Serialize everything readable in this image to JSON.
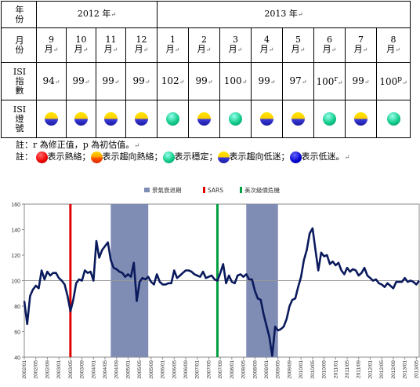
{
  "table": {
    "row_headers": {
      "year": "年\n份",
      "month": "月\n份",
      "isi_index": "ISI\n指\n數",
      "isi_signal": "ISI\n燈\n號"
    },
    "years": [
      {
        "label": "2012 年",
        "span": 4
      },
      {
        "label": "2013 年",
        "span": 8
      }
    ],
    "months": [
      "9\n月",
      "10\n月",
      "11\n月",
      "12\n月",
      "1\n月",
      "2\n月",
      "3\n月",
      "4\n月",
      "5\n月",
      "6\n月",
      "7\n月",
      "8\n月"
    ],
    "index_values": [
      "94",
      "99",
      "99",
      "99",
      "102",
      "99",
      "100",
      "99",
      "97",
      "100",
      "99",
      "100"
    ],
    "index_marks": [
      "",
      "",
      "",
      "",
      "",
      "",
      "",
      "",
      "",
      "r",
      "",
      "p"
    ],
    "signals": [
      "yb",
      "yb",
      "yb",
      "yb",
      "green",
      "yb",
      "green",
      "yb",
      "yb",
      "green",
      "yb",
      "green"
    ]
  },
  "notes": {
    "note1": "註：r 為修正值，p 為初估值。",
    "note2_prefix": "註：",
    "legend": [
      {
        "color": "red",
        "text": "表示熱絡；"
      },
      {
        "color": "yr",
        "text": "表示趨向熱絡；"
      },
      {
        "color": "green",
        "text": "表示穩定；"
      },
      {
        "color": "yb",
        "text": "表示趨向低迷；"
      },
      {
        "color": "blue",
        "text": "表示低迷。"
      }
    ]
  },
  "chart_data": {
    "type": "line",
    "legend": [
      {
        "label": "景氣衰退期",
        "color": "#7f8cb4"
      },
      {
        "label": "SARS",
        "color": "#e00000"
      },
      {
        "label": "美次級債危機",
        "color": "#00a040"
      }
    ],
    "ylim": [
      40,
      160
    ],
    "yticks": [
      40,
      60,
      80,
      100,
      120,
      140,
      160
    ],
    "reference_line": 100,
    "x_tick_labels": [
      "2002/01",
      "2002/05",
      "2002/09",
      "2003/01",
      "2003/05",
      "2003/09",
      "2004/01",
      "2004/05",
      "2004/09",
      "2005/01",
      "2005/05",
      "2005/09",
      "2006/01",
      "2006/05",
      "2006/09",
      "2007/01",
      "2007/05",
      "2007/09",
      "2008/01",
      "2008/05",
      "2008/09",
      "2009/01",
      "2009/05",
      "2009/09",
      "2010/01",
      "2010/05",
      "2010/09",
      "2011/01",
      "2011/05",
      "2011/09",
      "2012/01",
      "2012/05",
      "2012/09",
      "2013/01",
      "2013/05"
    ],
    "recession_periods": [
      [
        "2004/07",
        "2005/08"
      ],
      [
        "2008/06",
        "2009/05"
      ]
    ],
    "events": [
      {
        "name": "SARS",
        "date": "2003/05"
      },
      {
        "name": "美次級債危機",
        "date": "2007/08"
      }
    ],
    "series": [
      {
        "color": "#0a1a5c",
        "points": [
          [
            "2002/01",
            84
          ],
          [
            "2002/02",
            66
          ],
          [
            "2002/03",
            88
          ],
          [
            "2002/04",
            93
          ],
          [
            "2002/05",
            96
          ],
          [
            "2002/06",
            94
          ],
          [
            "2002/07",
            108
          ],
          [
            "2002/08",
            101
          ],
          [
            "2002/09",
            107
          ],
          [
            "2002/10",
            104
          ],
          [
            "2002/11",
            106
          ],
          [
            "2002/12",
            106
          ],
          [
            "2003/01",
            102
          ],
          [
            "2003/02",
            100
          ],
          [
            "2003/03",
            97
          ],
          [
            "2003/04",
            88
          ],
          [
            "2003/05",
            76
          ],
          [
            "2003/06",
            85
          ],
          [
            "2003/07",
            98
          ],
          [
            "2003/08",
            101
          ],
          [
            "2003/09",
            100
          ],
          [
            "2003/10",
            108
          ],
          [
            "2003/11",
            106
          ],
          [
            "2003/12",
            107
          ],
          [
            "2004/01",
            100
          ],
          [
            "2004/02",
            131
          ],
          [
            "2004/03",
            118
          ],
          [
            "2004/04",
            124
          ],
          [
            "2004/05",
            127
          ],
          [
            "2004/06",
            130
          ],
          [
            "2004/07",
            116
          ],
          [
            "2004/08",
            110
          ],
          [
            "2004/09",
            109
          ],
          [
            "2004/10",
            107
          ],
          [
            "2004/11",
            106
          ],
          [
            "2004/12",
            103
          ],
          [
            "2005/01",
            105
          ],
          [
            "2005/02",
            103
          ],
          [
            "2005/03",
            114
          ],
          [
            "2005/04",
            84
          ],
          [
            "2005/05",
            99
          ],
          [
            "2005/06",
            102
          ],
          [
            "2005/07",
            101
          ],
          [
            "2005/08",
            103
          ],
          [
            "2005/09",
            99
          ],
          [
            "2005/10",
            97
          ],
          [
            "2005/11",
            105
          ],
          [
            "2005/12",
            99
          ],
          [
            "2006/01",
            97
          ],
          [
            "2006/02",
            97
          ],
          [
            "2006/03",
            98
          ],
          [
            "2006/04",
            98
          ],
          [
            "2006/05",
            108
          ],
          [
            "2006/06",
            102
          ],
          [
            "2006/07",
            104
          ],
          [
            "2006/08",
            106
          ],
          [
            "2006/09",
            108
          ],
          [
            "2006/10",
            108
          ],
          [
            "2006/11",
            107
          ],
          [
            "2006/12",
            105
          ],
          [
            "2007/01",
            104
          ],
          [
            "2007/02",
            103
          ],
          [
            "2007/03",
            107
          ],
          [
            "2007/04",
            102
          ],
          [
            "2007/05",
            103
          ],
          [
            "2007/06",
            104
          ],
          [
            "2007/07",
            101
          ],
          [
            "2007/08",
            100
          ],
          [
            "2007/09",
            106
          ],
          [
            "2007/10",
            113
          ],
          [
            "2007/11",
            98
          ],
          [
            "2007/12",
            104
          ],
          [
            "2008/01",
            99
          ],
          [
            "2008/02",
            98
          ],
          [
            "2008/03",
            104
          ],
          [
            "2008/04",
            105
          ],
          [
            "2008/05",
            103
          ],
          [
            "2008/06",
            105
          ],
          [
            "2008/07",
            101
          ],
          [
            "2008/08",
            101
          ],
          [
            "2008/09",
            92
          ],
          [
            "2008/10",
            86
          ],
          [
            "2008/11",
            85
          ],
          [
            "2008/12",
            74
          ],
          [
            "2009/01",
            65
          ],
          [
            "2009/02",
            56
          ],
          [
            "2009/03",
            41
          ],
          [
            "2009/04",
            64
          ],
          [
            "2009/05",
            61
          ],
          [
            "2009/06",
            62
          ],
          [
            "2009/07",
            64
          ],
          [
            "2009/08",
            70
          ],
          [
            "2009/09",
            80
          ],
          [
            "2009/10",
            85
          ],
          [
            "2009/11",
            86
          ],
          [
            "2009/12",
            95
          ],
          [
            "2010/01",
            103
          ],
          [
            "2010/02",
            116
          ],
          [
            "2010/03",
            124
          ],
          [
            "2010/04",
            137
          ],
          [
            "2010/05",
            141
          ],
          [
            "2010/06",
            124
          ],
          [
            "2010/07",
            108
          ],
          [
            "2010/08",
            122
          ],
          [
            "2010/09",
            119
          ],
          [
            "2010/10",
            120
          ],
          [
            "2010/11",
            113
          ],
          [
            "2010/12",
            115
          ],
          [
            "2011/01",
            112
          ],
          [
            "2011/02",
            114
          ],
          [
            "2011/03",
            108
          ],
          [
            "2011/04",
            105
          ],
          [
            "2011/05",
            110
          ],
          [
            "2011/06",
            107
          ],
          [
            "2011/07",
            109
          ],
          [
            "2011/08",
            108
          ],
          [
            "2011/09",
            104
          ],
          [
            "2011/10",
            106
          ],
          [
            "2011/11",
            110
          ],
          [
            "2011/12",
            104
          ],
          [
            "2012/01",
            102
          ],
          [
            "2012/02",
            100
          ],
          [
            "2012/03",
            101
          ],
          [
            "2012/04",
            98
          ],
          [
            "2012/05",
            97
          ],
          [
            "2012/06",
            95
          ],
          [
            "2012/07",
            98
          ],
          [
            "2012/08",
            96
          ],
          [
            "2012/09",
            94
          ],
          [
            "2012/10",
            99
          ],
          [
            "2012/11",
            99
          ],
          [
            "2012/12",
            99
          ],
          [
            "2013/01",
            102
          ],
          [
            "2013/02",
            99
          ],
          [
            "2013/03",
            100
          ],
          [
            "2013/04",
            99
          ],
          [
            "2013/05",
            97
          ],
          [
            "2013/06",
            100
          ]
        ]
      }
    ]
  }
}
